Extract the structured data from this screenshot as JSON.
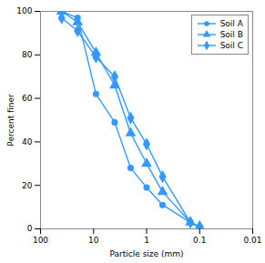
{
  "chart_data": {
    "type": "line",
    "xlabel": "Particle size (mm)",
    "ylabel": "Percent finer",
    "x": [
      40,
      20,
      9,
      4,
      2,
      1,
      0.5,
      0.15,
      0.1
    ],
    "series": [
      {
        "name": "Soil A",
        "color": "#3399FF",
        "marker": "circle",
        "values": [
          100,
          97,
          62,
          49,
          28,
          19,
          11,
          3,
          1
        ]
      },
      {
        "name": "Soil B",
        "color": "#3399FF",
        "marker": "triangle",
        "values": [
          100,
          95,
          81,
          66,
          44,
          30,
          17,
          3,
          1
        ]
      },
      {
        "name": "Soil C",
        "color": "#3399FF",
        "marker": "diamond",
        "values": [
          97,
          91,
          79,
          70,
          51,
          39,
          24,
          3,
          1
        ]
      }
    ],
    "xlim": [
      100,
      0.01
    ],
    "ylim": [
      0,
      100
    ],
    "xticks": [
      100,
      10,
      1,
      0.1,
      0.01
    ],
    "yticks": [
      0,
      20,
      40,
      60,
      80,
      100
    ],
    "log": "x",
    "grid": false,
    "legend": "upper right"
  }
}
